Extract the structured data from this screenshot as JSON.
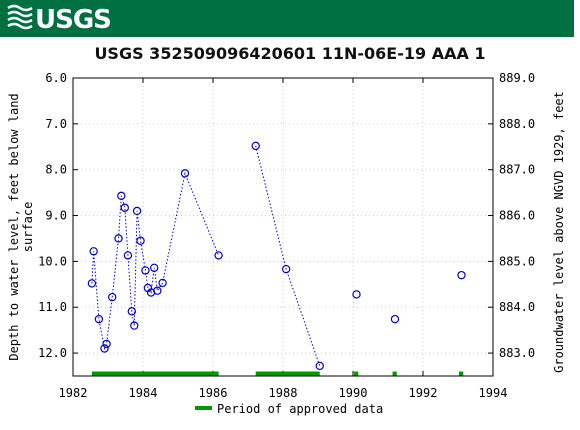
{
  "header": {
    "logo_text": "USGS",
    "brand_color": "#006f41"
  },
  "chart_data": {
    "type": "scatter",
    "title": "USGS 352509096420601 11N-06E-19 AAA 1",
    "ylabel_left": [
      "Depth to water level, feet below land",
      "surface"
    ],
    "ylabel_right": "Groundwater level above NGVD 1929, feet",
    "xlim": [
      1982,
      1994
    ],
    "ylim_left": [
      6.0,
      12.5
    ],
    "ylim_right": [
      882.5,
      889.0
    ],
    "y_inverted": true,
    "x_ticks": [
      "1982",
      "1984",
      "1986",
      "1988",
      "1990",
      "1992",
      "1994"
    ],
    "y_ticks_left": [
      "6.0",
      "7.0",
      "8.0",
      "9.0",
      "10.0",
      "11.0",
      "12.0"
    ],
    "y_ticks_right": [
      "889.0",
      "888.0",
      "887.0",
      "886.0",
      "885.0",
      "884.0",
      "883.0"
    ],
    "marker_color": "#0000cc",
    "segments": [
      [
        {
          "x": 1982.54,
          "y": 10.48
        },
        {
          "x": 1982.59,
          "y": 9.78
        },
        {
          "x": 1982.74,
          "y": 11.26
        },
        {
          "x": 1982.9,
          "y": 11.9
        },
        {
          "x": 1982.96,
          "y": 11.8
        },
        {
          "x": 1983.12,
          "y": 10.78
        },
        {
          "x": 1983.3,
          "y": 9.5
        },
        {
          "x": 1983.38,
          "y": 8.57
        },
        {
          "x": 1983.48,
          "y": 8.83
        },
        {
          "x": 1983.57,
          "y": 9.87
        },
        {
          "x": 1983.68,
          "y": 11.09
        },
        {
          "x": 1983.75,
          "y": 11.4
        },
        {
          "x": 1983.83,
          "y": 8.9
        },
        {
          "x": 1983.93,
          "y": 9.55
        },
        {
          "x": 1984.07,
          "y": 10.2
        },
        {
          "x": 1984.14,
          "y": 10.58
        },
        {
          "x": 1984.23,
          "y": 10.68
        },
        {
          "x": 1984.32,
          "y": 10.14
        },
        {
          "x": 1984.41,
          "y": 10.64
        },
        {
          "x": 1984.56,
          "y": 10.47
        },
        {
          "x": 1985.2,
          "y": 8.08
        },
        {
          "x": 1986.16,
          "y": 9.87
        }
      ],
      [
        {
          "x": 1987.22,
          "y": 7.48
        },
        {
          "x": 1988.09,
          "y": 10.17
        },
        {
          "x": 1989.05,
          "y": 12.28
        }
      ],
      [
        {
          "x": 1990.1,
          "y": 10.72
        }
      ],
      [
        {
          "x": 1991.2,
          "y": 11.26
        }
      ],
      [
        {
          "x": 1993.1,
          "y": 10.3
        }
      ]
    ],
    "approved_periods": [
      [
        1982.54,
        1986.16
      ],
      [
        1987.22,
        1989.05
      ],
      [
        1990.03,
        1990.15
      ],
      [
        1991.13,
        1991.25
      ],
      [
        1993.03,
        1993.15
      ]
    ],
    "approved_color": "#009900",
    "legend": {
      "label": "Period of approved data",
      "placement": "bottom-center"
    }
  }
}
